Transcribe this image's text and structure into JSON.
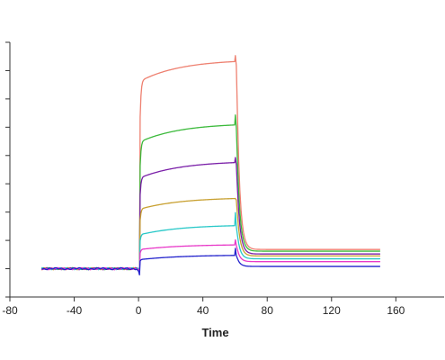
{
  "chart_data": {
    "type": "line",
    "title": "",
    "xlabel": "Time",
    "ylabel": "",
    "xlim": [
      -80,
      190
    ],
    "ylim": [
      -10,
      80
    ],
    "x_ticks": [
      -80,
      -40,
      0,
      40,
      80,
      120,
      160
    ],
    "y_ticks": [
      -10,
      0,
      10,
      20,
      30,
      40,
      50,
      60,
      70,
      80
    ],
    "y_tick_labels_visible": false,
    "grid": false,
    "legend": "none",
    "series": [
      {
        "color": "#ee8070",
        "baseline": 0,
        "assoc_start": 69.2,
        "assoc_end": 73.2,
        "dissoc_peak": 75.3,
        "dissoc_end": 6.8,
        "dip": 0
      },
      {
        "color": "#3cba3c",
        "baseline": 0,
        "assoc_start": 47.0,
        "assoc_end": 50.8,
        "dissoc_peak": 54.3,
        "dissoc_end": 6.2,
        "dip": 0
      },
      {
        "color": "#7a1fa8",
        "baseline": 0,
        "assoc_start": 33.8,
        "assoc_end": 37.5,
        "dissoc_peak": 39.3,
        "dissoc_end": 5.2,
        "dip": 0
      },
      {
        "color": "#c8a030",
        "baseline": 0,
        "assoc_start": 22.2,
        "assoc_end": 24.8,
        "dissoc_peak": 24.8,
        "dissoc_end": 4.5,
        "dip": 0
      },
      {
        "color": "#28c8c8",
        "baseline": 0,
        "assoc_start": 12.8,
        "assoc_end": 15.2,
        "dissoc_peak": 19.8,
        "dissoc_end": 3.5,
        "dip": 0
      },
      {
        "color": "#e838c8",
        "baseline": 0,
        "assoc_start": 7.2,
        "assoc_end": 8.4,
        "dissoc_peak": 10.2,
        "dissoc_end": 2.5,
        "dip": -0.6
      },
      {
        "color": "#2222cc",
        "baseline": 0,
        "assoc_start": 3.5,
        "assoc_end": 4.7,
        "dissoc_peak": 7.2,
        "dissoc_end": 0.8,
        "dip": -2.2
      }
    ]
  }
}
